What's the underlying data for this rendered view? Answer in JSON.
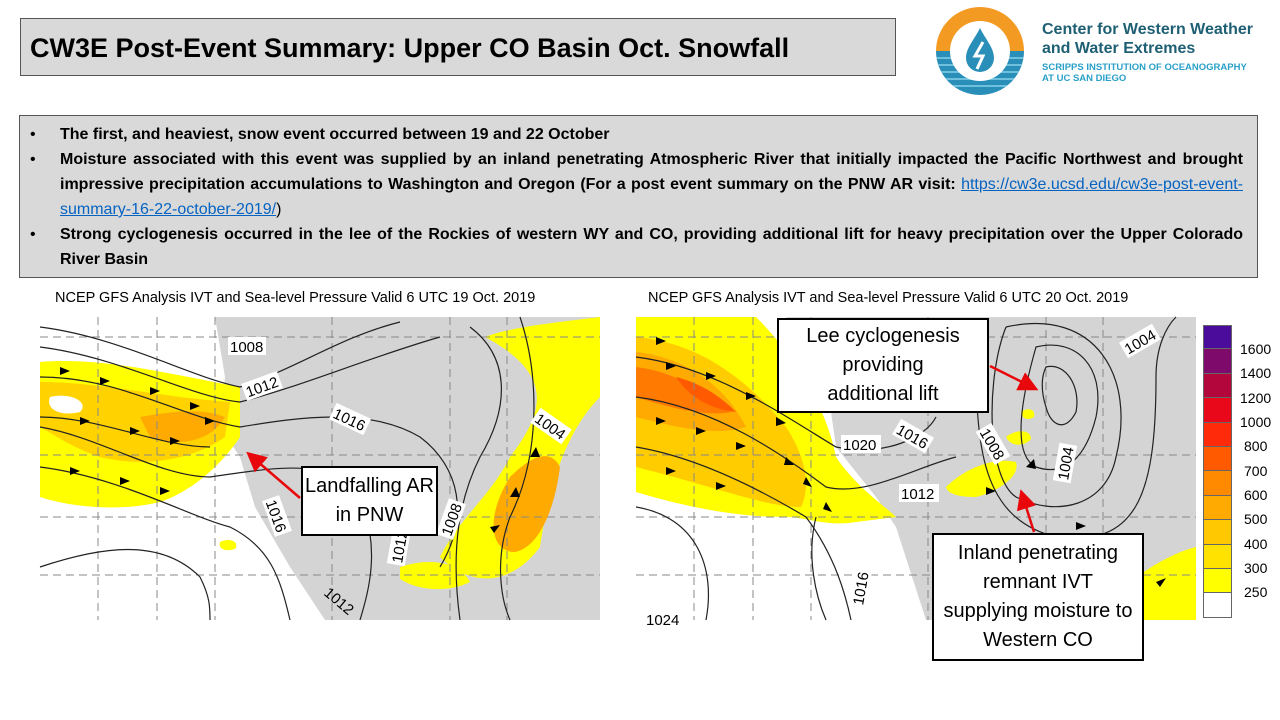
{
  "title": "CW3E Post-Event Summary: Upper CO Basin Oct. Snowfall",
  "logo": {
    "org_line1": "Center for Western Weather",
    "org_line2": "and Water Extremes",
    "sub_line1": "SCRIPPS INSTITUTION OF OCEANOGRAPHY",
    "sub_line2": "AT UC SAN DIEGO",
    "colors": {
      "orange": "#f39a23",
      "blue": "#2a8fb8",
      "teal": "#1e5f74"
    }
  },
  "bullets": [
    {
      "text": "The first, and heaviest, snow event occurred between 19 and 22 October"
    },
    {
      "text": "Moisture associated with this event was supplied by an inland penetrating Atmospheric River that initially impacted the Pacific Northwest and brought impressive precipitation accumulations to Washington and Oregon (For a post event summary on the PNW AR visit: ",
      "link": "https://cw3e.ucsd.edu/cw3e-post-event-summary-16-22-october-2019/",
      "after": ")"
    },
    {
      "text": " Strong cyclogenesis occurred in the lee of the Rockies of western WY and CO, providing additional lift for heavy precipitation over the Upper Colorado River Basin"
    }
  ],
  "maps": [
    {
      "caption": "NCEP GFS Analysis IVT and Sea-level Pressure Valid 6 UTC 19 Oct. 2019",
      "contour_labels": [
        "1008",
        "1012",
        "1016",
        "1004",
        "1008",
        "1016",
        "1012",
        "1012"
      ],
      "annotation": "Landfalling AR in PNW"
    },
    {
      "caption": "NCEP GFS Analysis IVT and Sea-level Pressure Valid 6 UTC 20 Oct. 2019",
      "contour_labels": [
        "1020",
        "1016",
        "1008",
        "1004",
        "1012",
        "1016",
        "1004",
        "1024"
      ],
      "annotation_1": "Lee cyclogenesis providing additional lift",
      "annotation_2": "Inland penetrating remnant IVT supplying moisture to Western CO"
    }
  ],
  "colorbar": {
    "labels": [
      "1600",
      "1400",
      "1200",
      "1000",
      "800",
      "700",
      "600",
      "500",
      "400",
      "300",
      "250"
    ],
    "colors": [
      "#4b0c9c",
      "#7e0a6c",
      "#b2063c",
      "#e8081a",
      "#ff2a0a",
      "#ff5a00",
      "#ff8a00",
      "#ffaa00",
      "#ffc800",
      "#ffe200",
      "#ffff00",
      "#ffffff"
    ]
  }
}
